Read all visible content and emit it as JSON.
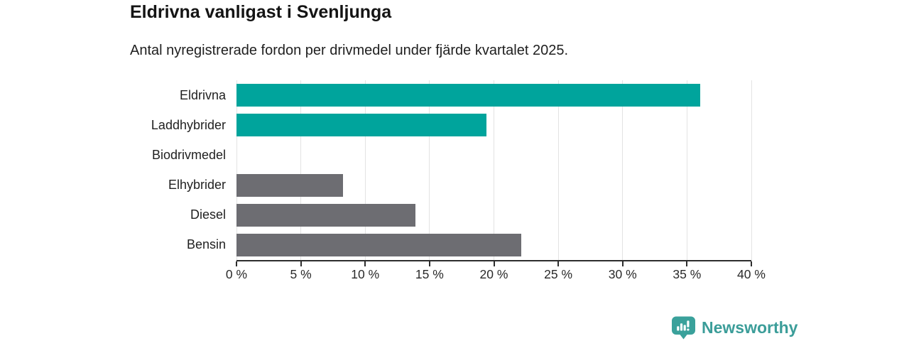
{
  "chart_data": {
    "type": "bar",
    "orientation": "horizontal",
    "title": "Eldrivna vanligast i Svenljunga",
    "subtitle": "Antal nyregistrerade fordon per drivmedel under fjärde kvartalet 2025.",
    "categories": [
      "Eldrivna",
      "Laddhybrider",
      "Biodrivmedel",
      "Elhybrider",
      "Diesel",
      "Bensin"
    ],
    "values": [
      36.0,
      19.4,
      0,
      8.3,
      13.9,
      22.1
    ],
    "unit": "%",
    "bar_color_roles": [
      "highlight",
      "highlight",
      "default",
      "default",
      "default",
      "default"
    ],
    "xlim": [
      0,
      40
    ],
    "x_ticks": [
      0,
      5,
      10,
      15,
      20,
      25,
      30,
      35,
      40
    ],
    "x_tick_labels": [
      "0 %",
      "5 %",
      "10 %",
      "15 %",
      "20 %",
      "25 %",
      "30 %",
      "35 %",
      "40 %"
    ],
    "grid": true,
    "legend": "none"
  },
  "colors": {
    "highlight": "#00a49c",
    "default": "#6d6d72",
    "gridline": "#e3e3e3",
    "axis": "#2d2d2d",
    "brand": "#3b9d99"
  },
  "branding": {
    "logo_text": "Newsworthy",
    "logo_icon": "bar-chart-speech-bubble-icon"
  }
}
